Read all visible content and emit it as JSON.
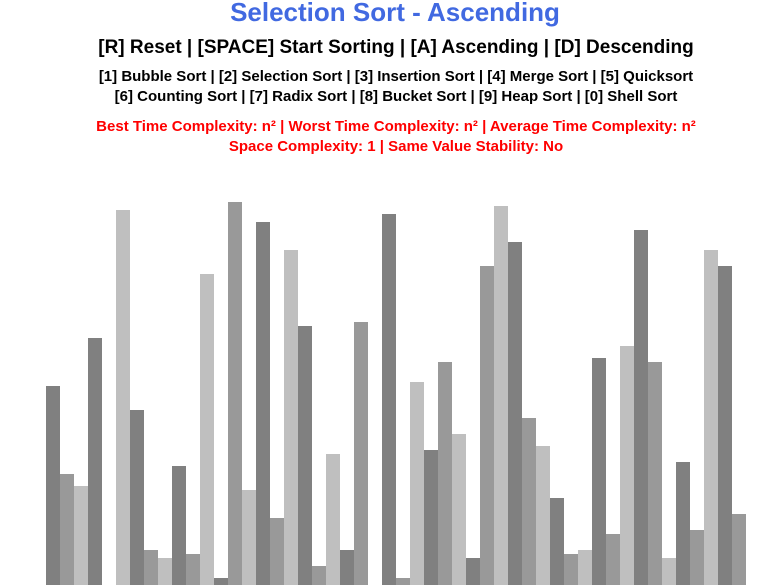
{
  "header": {
    "title": "Selection Sort - Ascending",
    "controls": "[R] Reset | [SPACE] Start Sorting | [A] Ascending | [D] Descending",
    "algorithms_line1": "[1] Bubble Sort | [2] Selection Sort | [3] Insertion Sort | [4] Merge Sort | [5] Quicksort",
    "algorithms_line2": "[6] Counting Sort | [7] Radix Sort | [8] Bucket Sort | [9] Heap Sort | [0] Shell Sort",
    "complexity_line1": "Best Time Complexity: n² | Worst Time Complexity: n² | Average Time Complexity: n²",
    "complexity_line2": "Space Complexity: 1 | Same Value Stability: No"
  },
  "colors": {
    "title": "#4169e1",
    "complexity": "#ff0000",
    "bar_dark": "#808080",
    "bar_mid": "#999999",
    "bar_light": "#bfbfbf",
    "background": "#ffffff"
  },
  "bars": [
    {
      "value": 199,
      "shade": "dark"
    },
    {
      "value": 111,
      "shade": "mid"
    },
    {
      "value": 99,
      "shade": "light"
    },
    {
      "value": 247,
      "shade": "dark"
    },
    {
      "value": 0,
      "shade": "none"
    },
    {
      "value": 375,
      "shade": "light"
    },
    {
      "value": 175,
      "shade": "dark"
    },
    {
      "value": 35,
      "shade": "mid"
    },
    {
      "value": 27,
      "shade": "light"
    },
    {
      "value": 119,
      "shade": "dark"
    },
    {
      "value": 31,
      "shade": "mid"
    },
    {
      "value": 311,
      "shade": "light"
    },
    {
      "value": 7,
      "shade": "dark"
    },
    {
      "value": 383,
      "shade": "mid"
    },
    {
      "value": 95,
      "shade": "light"
    },
    {
      "value": 363,
      "shade": "dark"
    },
    {
      "value": 67,
      "shade": "mid"
    },
    {
      "value": 335,
      "shade": "light"
    },
    {
      "value": 259,
      "shade": "dark"
    },
    {
      "value": 19,
      "shade": "mid"
    },
    {
      "value": 131,
      "shade": "light"
    },
    {
      "value": 35,
      "shade": "dark"
    },
    {
      "value": 263,
      "shade": "mid"
    },
    {
      "value": 0,
      "shade": "none"
    },
    {
      "value": 371,
      "shade": "dark"
    },
    {
      "value": 7,
      "shade": "mid"
    },
    {
      "value": 203,
      "shade": "light"
    },
    {
      "value": 135,
      "shade": "dark"
    },
    {
      "value": 223,
      "shade": "mid"
    },
    {
      "value": 151,
      "shade": "light"
    },
    {
      "value": 27,
      "shade": "dark"
    },
    {
      "value": 319,
      "shade": "mid"
    },
    {
      "value": 379,
      "shade": "light"
    },
    {
      "value": 343,
      "shade": "dark"
    },
    {
      "value": 167,
      "shade": "mid"
    },
    {
      "value": 139,
      "shade": "light"
    },
    {
      "value": 87,
      "shade": "dark"
    },
    {
      "value": 31,
      "shade": "mid"
    },
    {
      "value": 35,
      "shade": "light"
    },
    {
      "value": 227,
      "shade": "dark"
    },
    {
      "value": 51,
      "shade": "mid"
    },
    {
      "value": 239,
      "shade": "light"
    },
    {
      "value": 355,
      "shade": "dark"
    },
    {
      "value": 223,
      "shade": "mid"
    },
    {
      "value": 27,
      "shade": "light"
    },
    {
      "value": 123,
      "shade": "dark"
    },
    {
      "value": 55,
      "shade": "mid"
    },
    {
      "value": 335,
      "shade": "light"
    },
    {
      "value": 319,
      "shade": "dark"
    },
    {
      "value": 71,
      "shade": "mid"
    }
  ]
}
